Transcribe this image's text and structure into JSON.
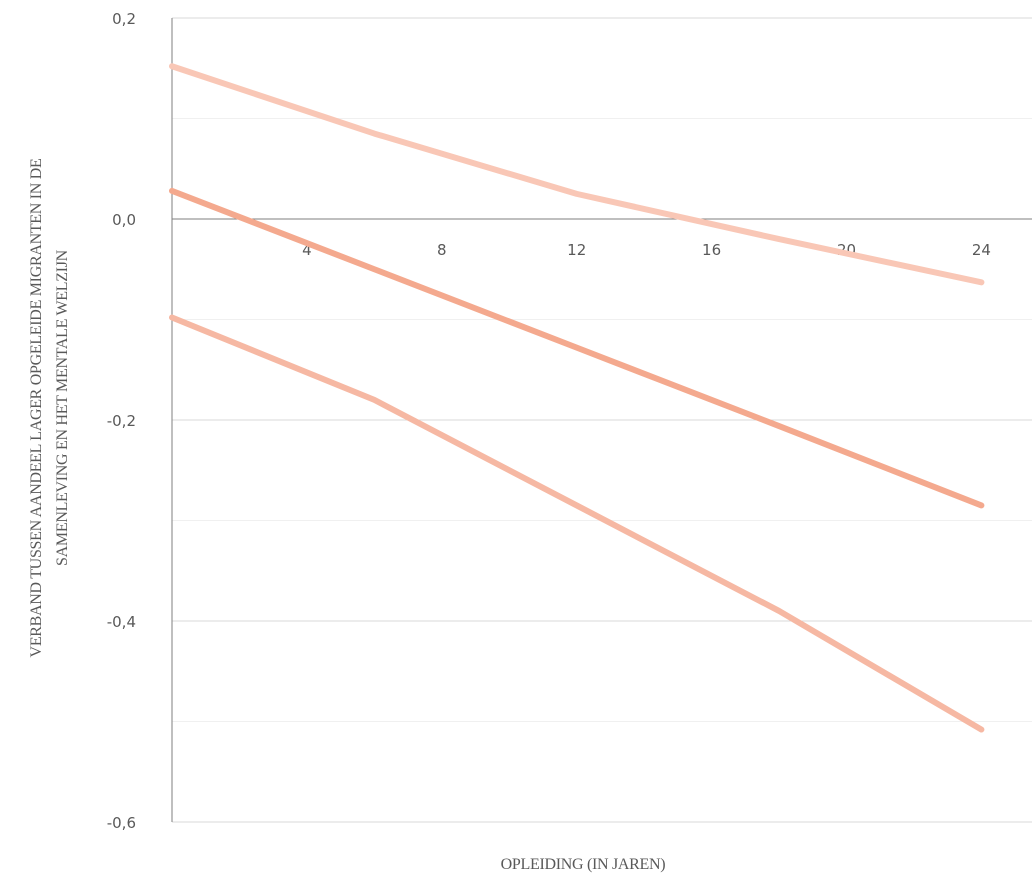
{
  "chart_data": {
    "type": "line",
    "title": "",
    "xlabel": "OPLEIDING (IN JAREN)",
    "ylabel_lines": [
      "VERBAND TUSSEN AANDEEL LAGER OPGELEIDE MIGRANTEN IN DE",
      "SAMENLEVING EN HET MENTALE WELZIJN"
    ],
    "xlim": [
      0,
      25.5
    ],
    "ylim": [
      -0.6,
      0.2
    ],
    "x_ticks": [
      {
        "value": 4,
        "label": "4"
      },
      {
        "value": 8,
        "label": "8"
      },
      {
        "value": 12,
        "label": "12"
      },
      {
        "value": 16,
        "label": "16"
      },
      {
        "value": 20,
        "label": "20"
      },
      {
        "value": 24,
        "label": "24"
      }
    ],
    "y_ticks": [
      {
        "value": 0.2,
        "label": "0,2"
      },
      {
        "value": 0.0,
        "label": "0,0"
      },
      {
        "value": -0.2,
        "label": "-0,2"
      },
      {
        "value": -0.4,
        "label": "-0,4"
      },
      {
        "value": -0.6,
        "label": "-0,6"
      }
    ],
    "minor_gridlines": [
      0.1,
      -0.1,
      -0.3,
      -0.5
    ],
    "grid": true,
    "legend": "none",
    "series": [
      {
        "x": [
          0,
          6,
          12,
          18,
          24
        ],
        "y": [
          0.152,
          0.085,
          0.025,
          -0.02,
          -0.063
        ],
        "color": "#f9c7b6"
      },
      {
        "x": [
          0,
          6,
          12,
          18,
          24
        ],
        "y": [
          0.028,
          -0.05,
          -0.128,
          -0.206,
          -0.285
        ],
        "color": "#f4a98e"
      },
      {
        "x": [
          0,
          6,
          12,
          18,
          24
        ],
        "y": [
          -0.098,
          -0.18,
          -0.285,
          -0.39,
          -0.508
        ],
        "color": "#f6b8a3"
      }
    ]
  }
}
